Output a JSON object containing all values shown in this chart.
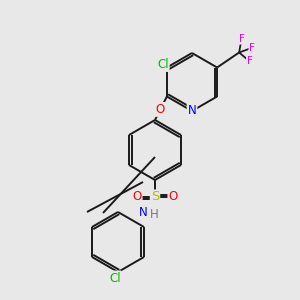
{
  "bg_color": "#e8e8e8",
  "bond_color": "#1a1a1a",
  "atom_colors": {
    "Cl": "#00bb00",
    "O": "#ff0000",
    "N": "#0000ee",
    "F": "#ee00ee",
    "S": "#bbbb00",
    "H": "#777777",
    "C": "#1a1a1a"
  },
  "lw": 1.4,
  "font_size": 8.5
}
